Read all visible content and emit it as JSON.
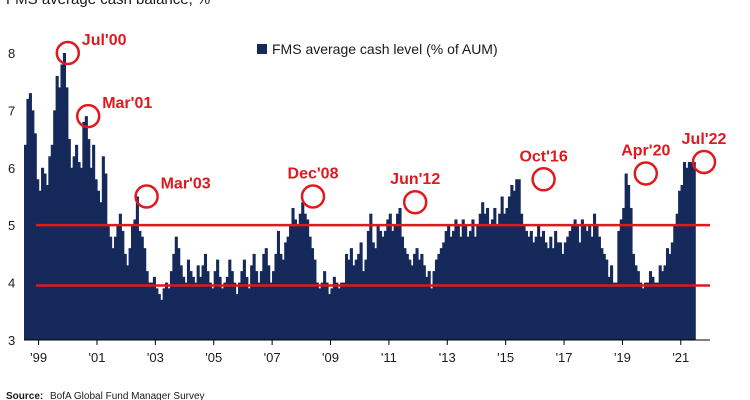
{
  "chart_data": {
    "type": "bar",
    "title": "FMS average cash balance, %",
    "legend": [
      "FMS average cash level (% of AUM)"
    ],
    "source_label": "Source:",
    "source_text": "BofA Global Fund Manager Survey",
    "ylim": [
      3,
      8.4
    ],
    "yticks": [
      "3",
      "4",
      "5",
      "6",
      "7",
      "8"
    ],
    "xticks": [
      "'99",
      "'01",
      "'03",
      "'05",
      "'07",
      "'09",
      "'11",
      "'13",
      "'15",
      "'17",
      "'19",
      "'21"
    ],
    "xrange": [
      1999.0,
      2022.5
    ],
    "grid": false,
    "bar_color": "#15295a",
    "reference_lines": [
      {
        "y": 5.0,
        "color": "#e0191e"
      },
      {
        "y": 3.95,
        "color": "#e0191e"
      }
    ],
    "annotations": [
      {
        "label": "Jul'00",
        "x": 2000.5,
        "y": 8.0
      },
      {
        "label": "Mar'01",
        "x": 2001.2,
        "y": 6.9
      },
      {
        "label": "Mar'03",
        "x": 2003.2,
        "y": 5.5
      },
      {
        "label": "Dec'08",
        "x": 2008.9,
        "y": 5.5
      },
      {
        "label": "Jun'12",
        "x": 2012.4,
        "y": 5.4
      },
      {
        "label": "Oct'16",
        "x": 2016.8,
        "y": 5.8
      },
      {
        "label": "Apr'20",
        "x": 2020.3,
        "y": 5.9
      },
      {
        "label": "Jul'22",
        "x": 2022.5,
        "y": 6.1
      }
    ],
    "x_start": 1999.0,
    "x_step": 0.0833,
    "values": [
      6.4,
      7.2,
      7.3,
      7.0,
      6.6,
      5.8,
      5.6,
      6.0,
      5.9,
      5.7,
      6.2,
      6.4,
      7.0,
      7.6,
      7.4,
      7.8,
      8.0,
      7.4,
      6.5,
      6.0,
      6.2,
      6.4,
      6.1,
      6.0,
      6.8,
      6.9,
      6.5,
      6.0,
      6.4,
      5.8,
      5.6,
      5.4,
      6.2,
      5.9,
      5.0,
      4.8,
      4.6,
      4.8,
      5.0,
      5.2,
      4.9,
      4.5,
      4.3,
      4.6,
      5.0,
      5.1,
      5.5,
      4.9,
      4.8,
      4.6,
      4.2,
      4.0,
      4.0,
      4.1,
      3.9,
      3.8,
      3.7,
      3.9,
      4.0,
      3.9,
      4.2,
      4.5,
      4.8,
      4.6,
      4.3,
      4.1,
      4.0,
      4.4,
      4.2,
      4.1,
      4.0,
      4.3,
      4.1,
      4.3,
      4.5,
      4.2,
      4.0,
      3.9,
      4.2,
      4.4,
      4.1,
      3.9,
      4.0,
      4.1,
      4.4,
      4.2,
      4.0,
      3.8,
      4.0,
      4.2,
      4.4,
      4.1,
      3.9,
      4.3,
      4.5,
      4.2,
      4.0,
      4.2,
      4.5,
      4.6,
      4.3,
      4.0,
      4.2,
      4.5,
      4.9,
      4.5,
      4.4,
      4.7,
      4.8,
      5.0,
      5.3,
      5.1,
      5.0,
      5.2,
      5.4,
      5.2,
      5.1,
      4.8,
      4.6,
      4.4,
      4.0,
      3.9,
      4.0,
      4.2,
      4.0,
      3.8,
      3.9,
      4.1,
      4.0,
      3.9,
      4.0,
      4.0,
      4.5,
      4.4,
      4.6,
      4.3,
      4.4,
      4.5,
      4.7,
      4.2,
      4.4,
      4.9,
      5.2,
      4.7,
      4.6,
      5.0,
      4.9,
      4.8,
      4.9,
      5.1,
      5.2,
      4.9,
      5.0,
      5.2,
      5.3,
      4.8,
      4.6,
      4.5,
      4.4,
      4.3,
      4.5,
      4.6,
      4.4,
      4.5,
      4.3,
      4.1,
      4.2,
      3.9,
      4.2,
      4.4,
      4.5,
      4.6,
      4.7,
      4.9,
      5.0,
      4.8,
      4.9,
      5.1,
      5.0,
      4.8,
      5.1,
      5.0,
      4.8,
      4.9,
      5.1,
      4.8,
      5.0,
      5.2,
      5.4,
      5.2,
      5.3,
      5.0,
      5.1,
      5.3,
      5.0,
      5.2,
      5.5,
      5.2,
      5.3,
      5.5,
      5.7,
      5.6,
      5.8,
      5.8,
      5.2,
      5.0,
      4.9,
      4.8,
      4.9,
      4.7,
      4.8,
      5.0,
      4.8,
      4.9,
      4.7,
      4.6,
      4.8,
      4.6,
      4.9,
      4.7,
      4.7,
      4.5,
      4.7,
      4.8,
      4.9,
      5.0,
      5.1,
      5.0,
      4.7,
      5.1,
      5.0,
      4.9,
      5.0,
      4.8,
      5.2,
      5.0,
      4.8,
      4.6,
      4.5,
      4.4,
      4.1,
      4.3,
      4.0,
      4.0,
      4.9,
      5.1,
      5.3,
      5.9,
      5.7,
      5.3,
      4.5,
      4.3,
      4.2,
      4.0,
      3.9,
      4.0,
      4.0,
      4.2,
      4.1,
      4.0,
      4.0,
      4.3,
      4.2,
      4.3,
      4.6,
      4.5,
      4.7,
      5.0,
      5.2,
      5.6,
      5.7,
      6.1,
      6.0,
      6.1,
      6.1,
      6.1
    ]
  }
}
